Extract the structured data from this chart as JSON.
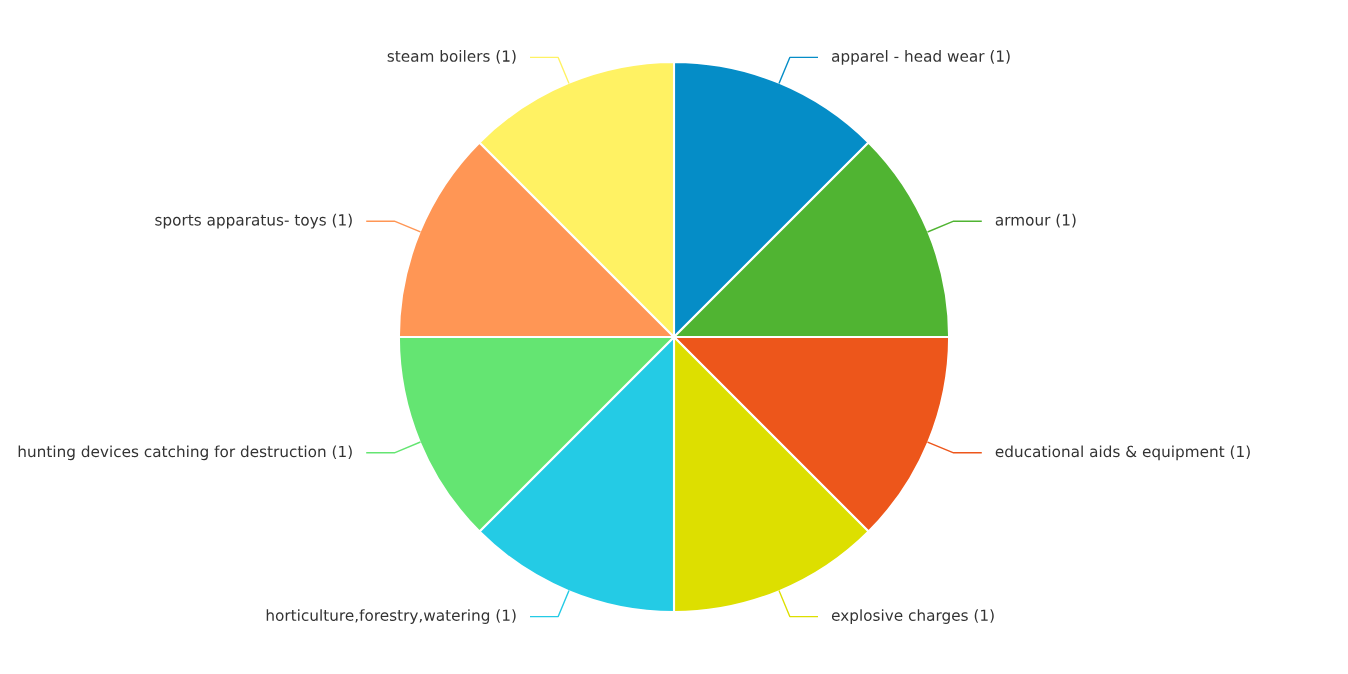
{
  "chart_data": {
    "type": "pie",
    "categories": [
      "apparel - head wear (1)",
      "armour (1)",
      "educational aids & equipment (1)",
      "explosive charges (1)",
      "horticulture,forestry,watering (1)",
      "hunting devices catching for destruction (1)",
      "sports apparatus- toys (1)",
      "steam boilers (1)"
    ],
    "values": [
      12.5,
      12.5,
      12.5,
      12.5,
      12.5,
      12.5,
      12.5,
      12.5
    ],
    "colors": [
      "#058dc7",
      "#50b432",
      "#ed561b",
      "#dddf00",
      "#24cbe5",
      "#64e572",
      "#ff9655",
      "#fff263"
    ]
  }
}
